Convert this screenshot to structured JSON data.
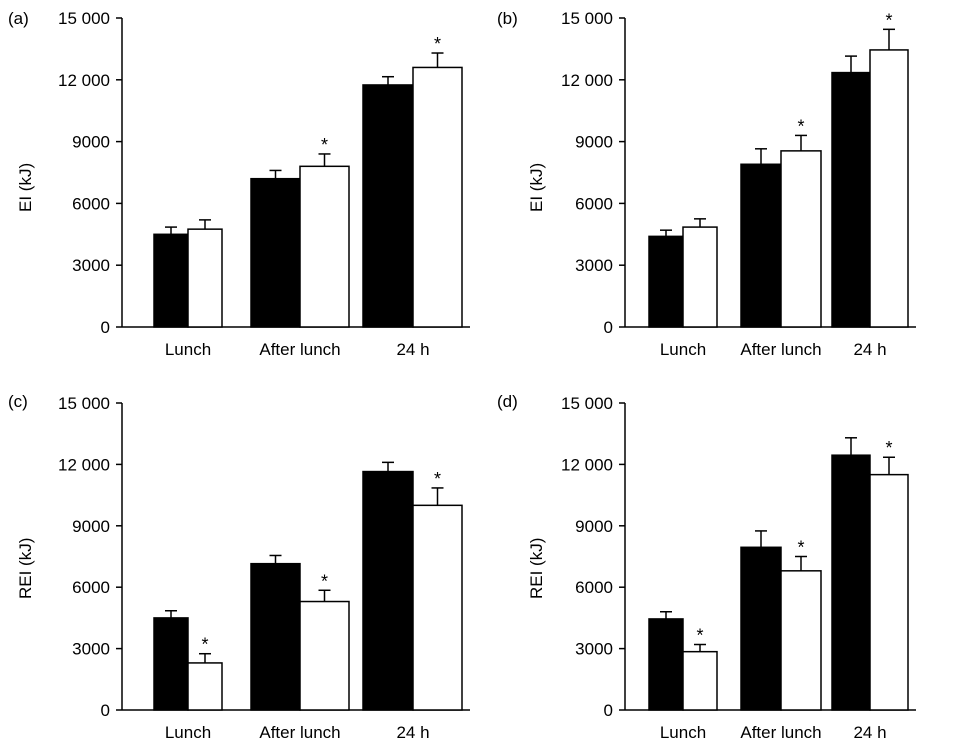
{
  "chart_data": [
    {
      "panel_label": "(a)",
      "type": "bar",
      "categories": [
        "Lunch",
        "After lunch",
        "24 h"
      ],
      "ylabel": "EI (kJ)",
      "ylim": [
        0,
        15000
      ],
      "yticks": [
        0,
        3000,
        6000,
        9000,
        12000,
        15000
      ],
      "ytick_labels": [
        "0",
        "3000",
        "6000",
        "9000",
        "12 000",
        "15 000"
      ],
      "series": [
        {
          "color": "#000000",
          "values": [
            4500,
            7200,
            11750
          ],
          "errors": [
            350,
            400,
            400
          ],
          "significant": [
            false,
            false,
            false
          ]
        },
        {
          "color": "#ffffff",
          "values": [
            4750,
            7800,
            12600
          ],
          "errors": [
            450,
            600,
            700
          ],
          "significant": [
            false,
            true,
            true
          ]
        }
      ],
      "annotation": "*"
    },
    {
      "panel_label": "(b)",
      "type": "bar",
      "categories": [
        "Lunch",
        "After lunch",
        "24 h"
      ],
      "ylabel": "EI (kJ)",
      "ylim": [
        0,
        15000
      ],
      "yticks": [
        0,
        3000,
        6000,
        9000,
        12000,
        15000
      ],
      "ytick_labels": [
        "0",
        "3000",
        "6000",
        "9000",
        "12 000",
        "15 000"
      ],
      "series": [
        {
          "color": "#000000",
          "values": [
            4400,
            7900,
            12350
          ],
          "errors": [
            300,
            750,
            800
          ],
          "significant": [
            false,
            false,
            false
          ]
        },
        {
          "color": "#ffffff",
          "values": [
            4850,
            8550,
            13450
          ],
          "errors": [
            400,
            750,
            1000
          ],
          "significant": [
            false,
            true,
            true
          ]
        }
      ],
      "annotation": "*"
    },
    {
      "panel_label": "(c)",
      "type": "bar",
      "categories": [
        "Lunch",
        "After lunch",
        "24 h"
      ],
      "ylabel": "REI (kJ)",
      "ylim": [
        0,
        15000
      ],
      "yticks": [
        0,
        3000,
        6000,
        9000,
        12000,
        15000
      ],
      "ytick_labels": [
        "0",
        "3000",
        "6000",
        "9000",
        "12 000",
        "15 000"
      ],
      "series": [
        {
          "color": "#000000",
          "values": [
            4500,
            7150,
            11650
          ],
          "errors": [
            350,
            400,
            450
          ],
          "significant": [
            false,
            false,
            false
          ]
        },
        {
          "color": "#ffffff",
          "values": [
            2300,
            5300,
            10000
          ],
          "errors": [
            450,
            550,
            850
          ],
          "significant": [
            true,
            true,
            true
          ]
        }
      ],
      "annotation": "*"
    },
    {
      "panel_label": "(d)",
      "type": "bar",
      "categories": [
        "Lunch",
        "After lunch",
        "24 h"
      ],
      "ylabel": "REI (kJ)",
      "ylim": [
        0,
        15000
      ],
      "yticks": [
        0,
        3000,
        6000,
        9000,
        12000,
        15000
      ],
      "ytick_labels": [
        "0",
        "3000",
        "6000",
        "9000",
        "12 000",
        "15 000"
      ],
      "series": [
        {
          "color": "#000000",
          "values": [
            4450,
            7950,
            12450
          ],
          "errors": [
            350,
            800,
            850
          ],
          "significant": [
            false,
            false,
            false
          ]
        },
        {
          "color": "#ffffff",
          "values": [
            2850,
            6800,
            11500
          ],
          "errors": [
            350,
            700,
            850
          ],
          "significant": [
            true,
            true,
            true
          ]
        }
      ],
      "annotation": "*"
    }
  ]
}
